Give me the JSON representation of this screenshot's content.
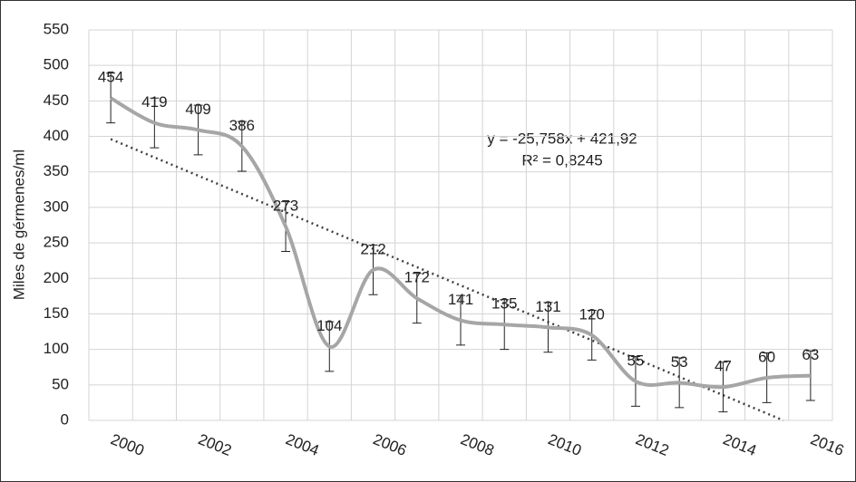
{
  "chart_data": {
    "type": "line",
    "y_label": "Miles de gérmenes/ml",
    "categories": [
      "2000",
      null,
      "2002",
      null,
      "2004",
      null,
      "2006",
      null,
      "2008",
      null,
      "2010",
      null,
      "2012",
      null,
      "2014",
      null,
      "2016"
    ],
    "values": [
      454,
      419,
      409,
      386,
      273,
      104,
      212,
      172,
      141,
      135,
      131,
      120,
      55,
      53,
      47,
      60,
      63
    ],
    "errors": [
      35,
      35,
      35,
      35,
      35,
      35,
      35,
      35,
      35,
      35,
      35,
      35,
      35,
      35,
      35,
      35,
      35
    ],
    "color": "#a6a6a6",
    "smooth": true,
    "ylim": [
      0,
      550
    ],
    "yticks": [
      0,
      50,
      100,
      150,
      200,
      250,
      300,
      350,
      400,
      450,
      500,
      550
    ],
    "grid": true,
    "trendline": {
      "slope": -25.758,
      "intercept": 421.92,
      "color": "#404040"
    },
    "annotations": [
      "y = -25,758x + 421,92",
      "R² = 0,8245"
    ]
  }
}
